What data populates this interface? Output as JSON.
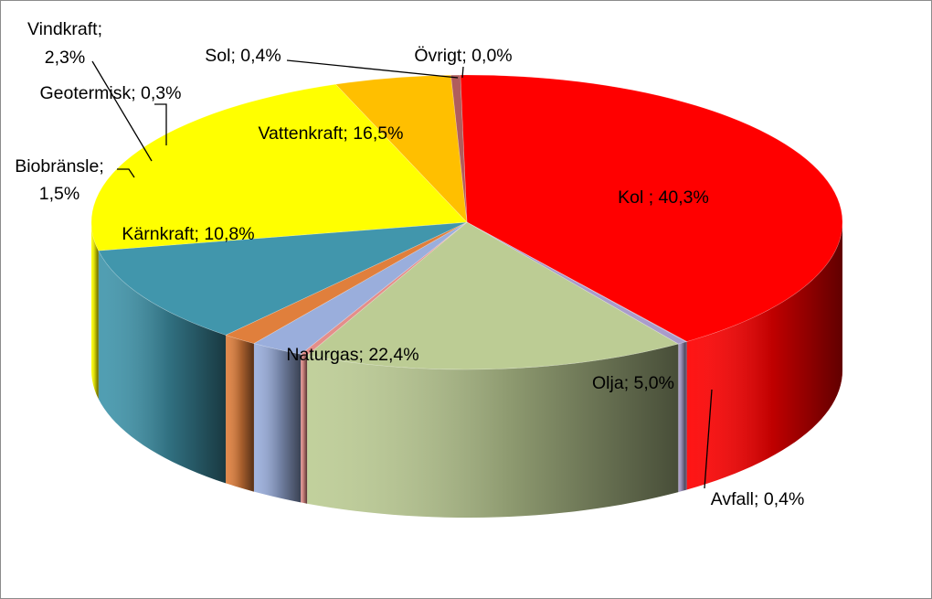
{
  "chart_data": {
    "type": "pie",
    "style": "3d-pie",
    "slices": [
      {
        "name": "Kol",
        "label": "Kol ; 40,3%",
        "value": 40.3,
        "color": "#ff0000"
      },
      {
        "name": "Övrigt",
        "label": "Övrigt; 0,0%",
        "value": 0.04,
        "color": "#8c7fb5"
      },
      {
        "name": "Sol",
        "label": "Sol; 0,4%",
        "value": 0.4,
        "color": "#a99ccb"
      },
      {
        "name": "Vattenkraft",
        "label": "Vattenkraft; 16,5%",
        "value": 16.5,
        "color": "#bccc94"
      },
      {
        "name": "Geotermisk",
        "label": "Geotermisk; 0,3%",
        "value": 0.3,
        "color": "#e48e8a"
      },
      {
        "name": "Vindkraft",
        "label": "Vindkraft; 2,3%",
        "value": 2.3,
        "color": "#9aaedc"
      },
      {
        "name": "Biobränsle",
        "label": "Biobränsle; 1,5%",
        "value": 1.5,
        "color": "#e07f3c"
      },
      {
        "name": "Kärnkraft",
        "label": "Kärnkraft; 10,8%",
        "value": 10.8,
        "color": "#4196ac"
      },
      {
        "name": "Naturgas",
        "label": "Naturgas; 22,4%",
        "value": 22.4,
        "color": "#ffff00"
      },
      {
        "name": "Olja",
        "label": "Olja; 5,0%",
        "value": 5.0,
        "color": "#ffbf00"
      },
      {
        "name": "Avfall",
        "label": "Avfall; 0,4%",
        "value": 0.4,
        "color": "#b05d5d"
      }
    ],
    "legend": "none"
  }
}
